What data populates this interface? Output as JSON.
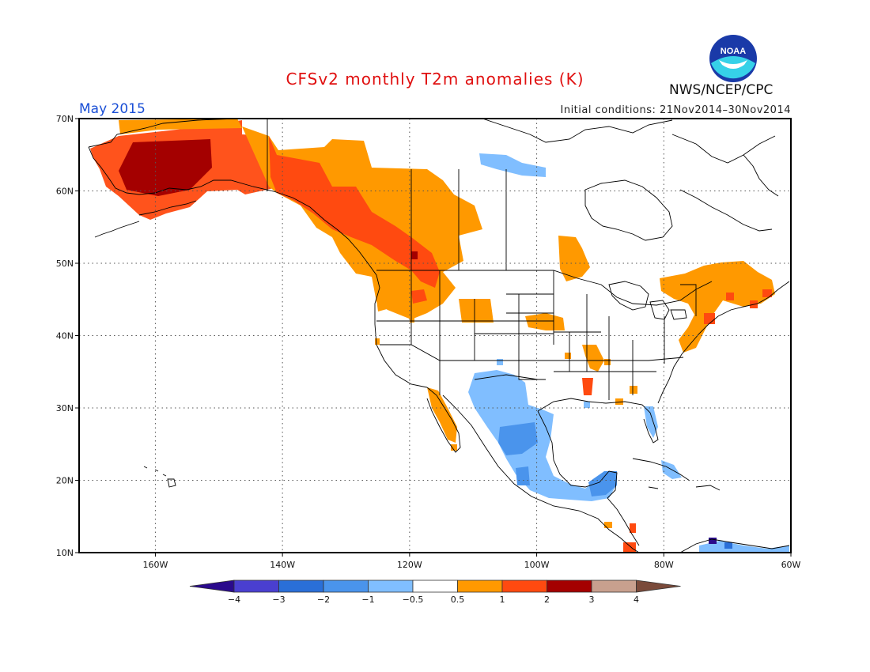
{
  "header": {
    "title": "CFSv2 monthly T2m anomalies (K)",
    "period": "May 2015",
    "initial_conditions": "Initial conditions: 21Nov2014–30Nov2014",
    "agency": "NWS/NCEP/CPC",
    "logo_text": "NOAA"
  },
  "map": {
    "projection": "lat-lon",
    "lon_range": [
      -172,
      -60
    ],
    "lat_range": [
      10,
      70
    ],
    "grid": true,
    "lon_ticks": [
      {
        "lon": -160,
        "label": "160W"
      },
      {
        "lon": -140,
        "label": "140W"
      },
      {
        "lon": -120,
        "label": "120W"
      },
      {
        "lon": -100,
        "label": "100W"
      },
      {
        "lon": -80,
        "label": "80W"
      },
      {
        "lon": -60,
        "label": "60W"
      }
    ],
    "lat_ticks": [
      {
        "lat": 70,
        "label": "70N"
      },
      {
        "lat": 60,
        "label": "60N"
      },
      {
        "lat": 50,
        "label": "50N"
      },
      {
        "lat": 40,
        "label": "40N"
      },
      {
        "lat": 30,
        "label": "30N"
      },
      {
        "lat": 20,
        "label": "20N"
      },
      {
        "lat": 10,
        "label": "10N"
      }
    ],
    "colors": {
      "land_outline": "#000000",
      "grid_dots": "#555555"
    }
  },
  "colorbar": {
    "labels": [
      "−4",
      "−3",
      "−2",
      "−1",
      "−0.5",
      "0.5",
      "1",
      "2",
      "3",
      "4"
    ],
    "colors": [
      "#2a0a8c",
      "#4a3fd0",
      "#2a6fd8",
      "#4a94ec",
      "#80beff",
      "#ffffff",
      "#ff9900",
      "#ff4a10",
      "#a40000",
      "#c8a08e",
      "#7a4a3a"
    ]
  },
  "anomaly_regions": [
    {
      "name": "Alaska",
      "level": 3,
      "color": "#a40000",
      "lon": [
        -163,
        -150
      ],
      "lat": [
        60,
        66
      ]
    },
    {
      "name": "Alaska coast",
      "level": 2,
      "color": "#ff4a10",
      "lon": [
        -168,
        -130
      ],
      "lat": [
        58,
        68
      ]
    },
    {
      "name": "Western Canada",
      "level": 1,
      "color": "#ff9900",
      "lon": [
        -134,
        -105
      ],
      "lat": [
        42,
        66
      ]
    },
    {
      "name": "Pacific Northwest",
      "level": 2,
      "color": "#ff4a10",
      "lon": [
        -132,
        -113
      ],
      "lat": [
        47,
        60
      ]
    },
    {
      "name": "Northeast US",
      "level": 1,
      "color": "#ff9900",
      "lon": [
        -78,
        -62
      ],
      "lat": [
        38,
        48
      ]
    },
    {
      "name": "Hudson Bay north",
      "level": -1,
      "color": "#80beff",
      "lon": [
        -104,
        -97
      ],
      "lat": [
        61,
        64
      ]
    },
    {
      "name": "Mexico / Texas",
      "level": -1,
      "color": "#80beff",
      "lon": [
        -111,
        -88
      ],
      "lat": [
        16,
        34
      ]
    },
    {
      "name": "Yucatan",
      "level": -2,
      "color": "#4a94ec",
      "lon": [
        -94,
        -87
      ],
      "lat": [
        17,
        21
      ]
    }
  ]
}
